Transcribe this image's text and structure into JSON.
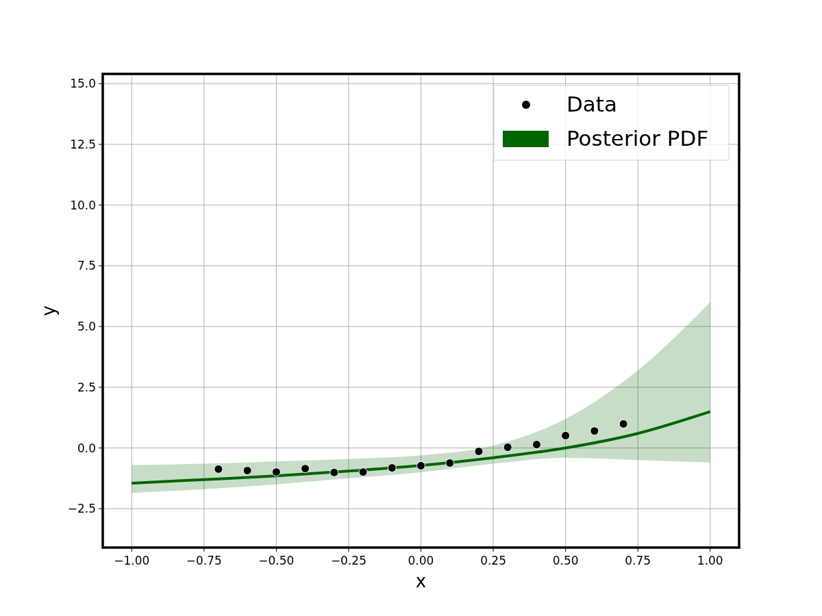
{
  "chart_data": {
    "type": "scatter",
    "xlabel": "x",
    "ylabel": "y",
    "xlim": [
      -1.1,
      1.1
    ],
    "ylim": [
      -4.1,
      15.4
    ],
    "xticks": [
      {
        "value": -1,
        "label": "−1.00"
      },
      {
        "value": -0.75,
        "label": "−0.75"
      },
      {
        "value": -0.5,
        "label": "−0.50"
      },
      {
        "value": -0.25,
        "label": "−0.25"
      },
      {
        "value": 0,
        "label": "0.00"
      },
      {
        "value": 0.25,
        "label": "0.25"
      },
      {
        "value": 0.5,
        "label": "0.50"
      },
      {
        "value": 0.75,
        "label": "0.75"
      },
      {
        "value": 1,
        "label": "1.00"
      }
    ],
    "yticks": [
      {
        "value": -2.5,
        "label": "−2.5"
      },
      {
        "value": 0,
        "label": "0.0"
      },
      {
        "value": 2.5,
        "label": "2.5"
      },
      {
        "value": 5,
        "label": "5.0"
      },
      {
        "value": 7.5,
        "label": "7.5"
      },
      {
        "value": 10,
        "label": "10.0"
      },
      {
        "value": 12.5,
        "label": "12.5"
      },
      {
        "value": 15,
        "label": "15.0"
      }
    ],
    "grid": true,
    "legend": "top right",
    "series": [
      {
        "name": "Posterior PDF",
        "type": "line",
        "color": "#006400",
        "x": [
          -1,
          -0.75,
          -0.5,
          -0.25,
          0,
          0.25,
          0.5,
          0.75,
          1
        ],
        "values": [
          -1.45,
          -1.3,
          -1.15,
          -0.95,
          -0.72,
          -0.4,
          0.0,
          0.6,
          1.5
        ],
        "lower": [
          -1.85,
          -1.7,
          -1.5,
          -1.25,
          -1.0,
          -0.65,
          -0.4,
          -0.5,
          -0.6
        ],
        "upper": [
          -0.7,
          -0.65,
          -0.55,
          -0.45,
          -0.3,
          0.1,
          1.2,
          3.2,
          6.0
        ]
      },
      {
        "name": "Data",
        "marker": "circle",
        "color": "#000000",
        "x": [
          -0.7,
          -0.6,
          -0.5,
          -0.4,
          -0.3,
          -0.2,
          -0.1,
          0,
          0.1,
          0.2,
          0.3,
          0.4,
          0.5,
          0.6,
          0.7
        ],
        "values": [
          -0.87,
          -0.93,
          -0.99,
          -0.85,
          -1.01,
          -0.99,
          -0.82,
          -0.73,
          -0.62,
          -0.14,
          0.03,
          0.14,
          0.51,
          0.7,
          0.99
        ]
      }
    ]
  }
}
